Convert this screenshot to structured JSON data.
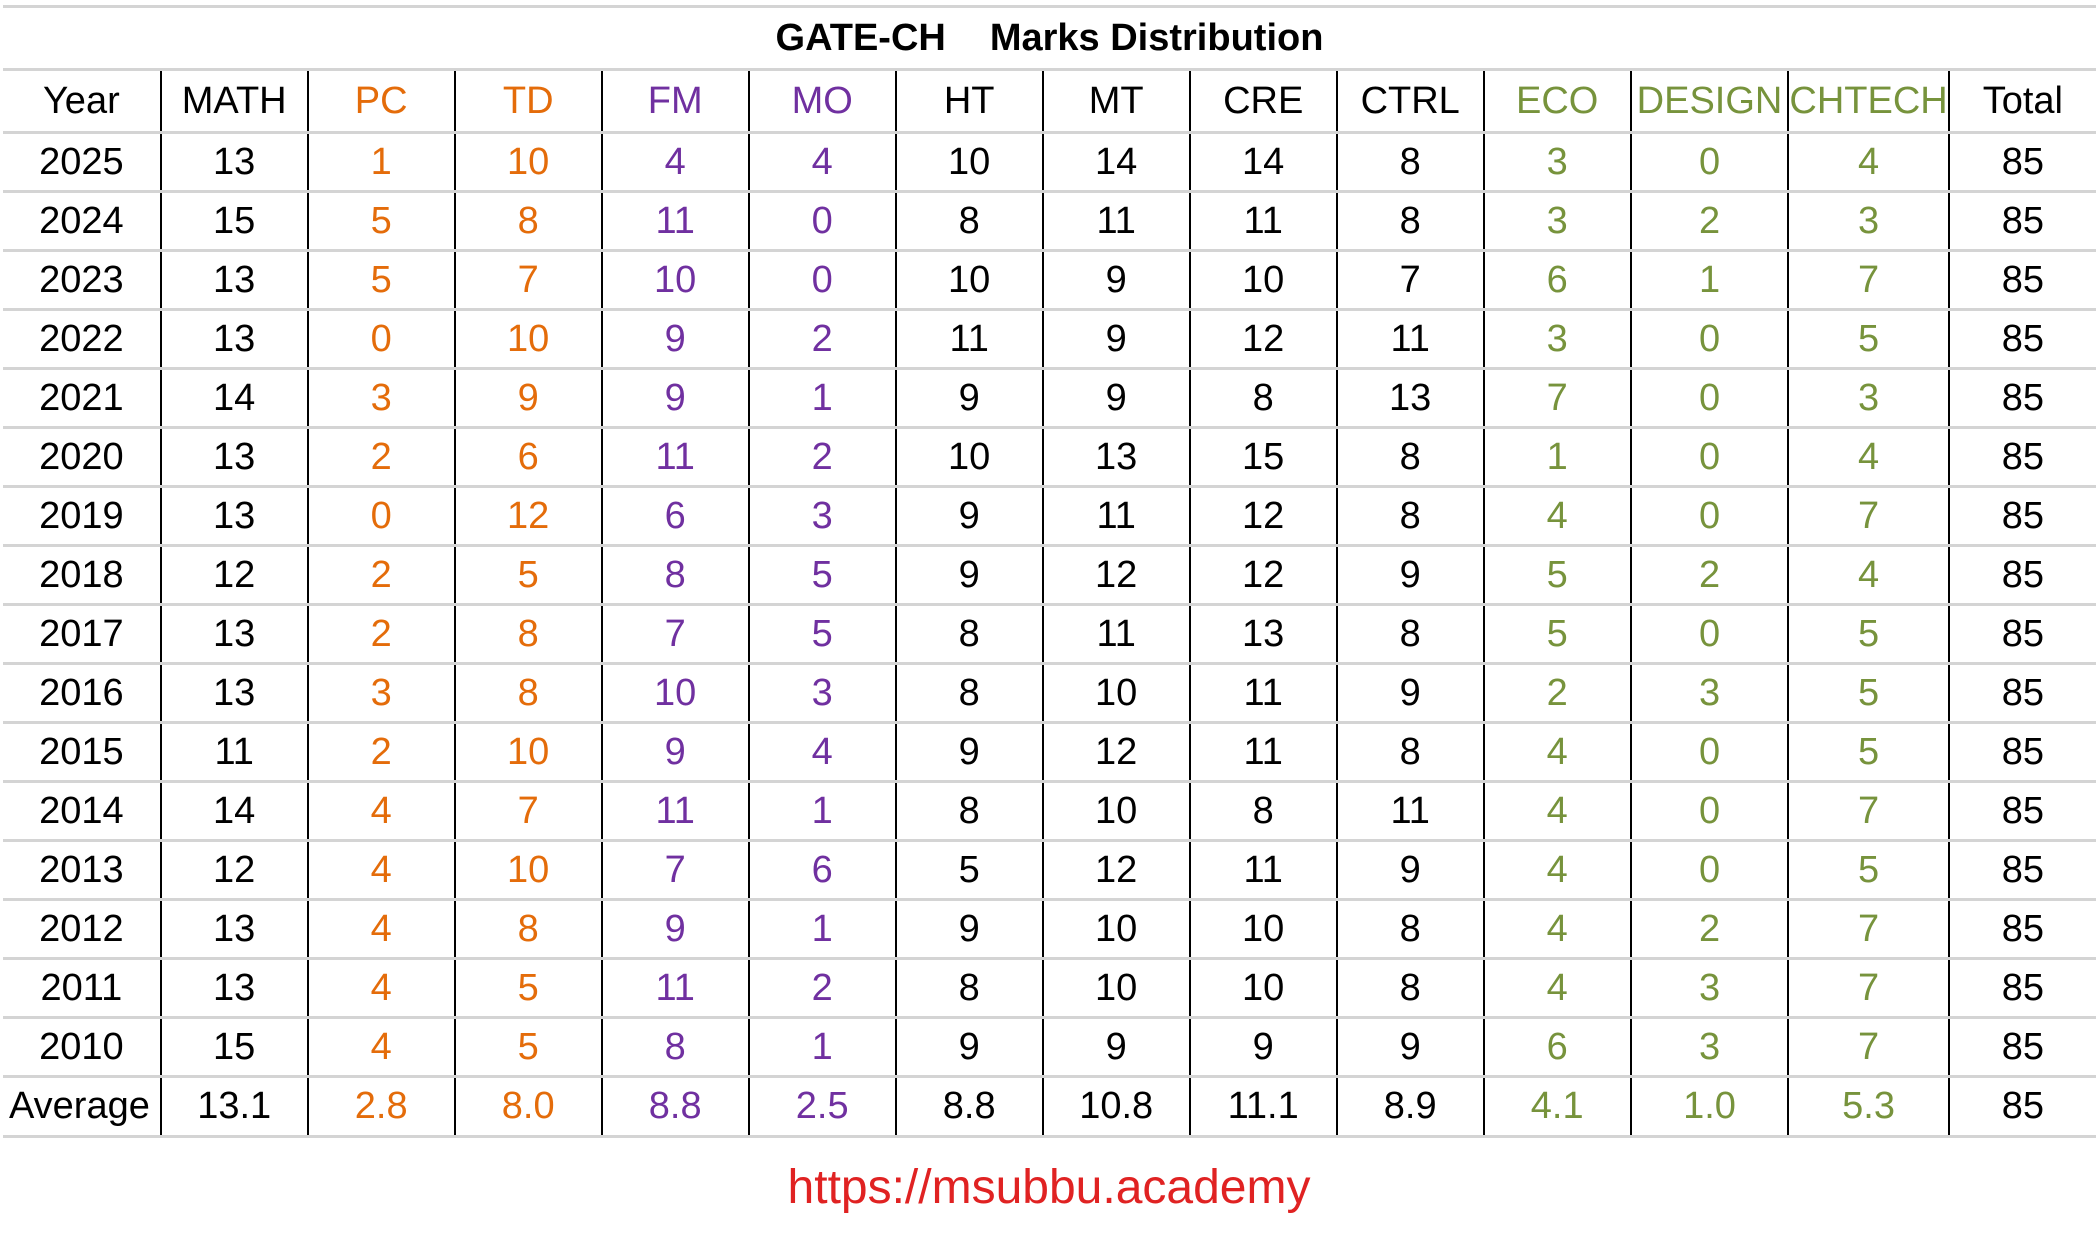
{
  "chart_data": {
    "type": "table",
    "title_part1": "GATE-CH",
    "title_part2": "Marks Distribution",
    "columns": [
      "Year",
      "MATH",
      "PC",
      "TD",
      "FM",
      "MO",
      "HT",
      "MT",
      "CRE",
      "CTRL",
      "ECO",
      "DESIGN",
      "CHTECH",
      "Total"
    ],
    "column_colors": [
      "#000000",
      "#000000",
      "#e46c0a",
      "#e46c0a",
      "#7030a0",
      "#7030a0",
      "#000000",
      "#000000",
      "#000000",
      "#000000",
      "#77933c",
      "#77933c",
      "#77933c",
      "#000000"
    ],
    "rows": [
      [
        "2025",
        "13",
        "1",
        "10",
        "4",
        "4",
        "10",
        "14",
        "14",
        "8",
        "3",
        "0",
        "4",
        "85"
      ],
      [
        "2024",
        "15",
        "5",
        "8",
        "11",
        "0",
        "8",
        "11",
        "11",
        "8",
        "3",
        "2",
        "3",
        "85"
      ],
      [
        "2023",
        "13",
        "5",
        "7",
        "10",
        "0",
        "10",
        "9",
        "10",
        "7",
        "6",
        "1",
        "7",
        "85"
      ],
      [
        "2022",
        "13",
        "0",
        "10",
        "9",
        "2",
        "11",
        "9",
        "12",
        "11",
        "3",
        "0",
        "5",
        "85"
      ],
      [
        "2021",
        "14",
        "3",
        "9",
        "9",
        "1",
        "9",
        "9",
        "8",
        "13",
        "7",
        "0",
        "3",
        "85"
      ],
      [
        "2020",
        "13",
        "2",
        "6",
        "11",
        "2",
        "10",
        "13",
        "15",
        "8",
        "1",
        "0",
        "4",
        "85"
      ],
      [
        "2019",
        "13",
        "0",
        "12",
        "6",
        "3",
        "9",
        "11",
        "12",
        "8",
        "4",
        "0",
        "7",
        "85"
      ],
      [
        "2018",
        "12",
        "2",
        "5",
        "8",
        "5",
        "9",
        "12",
        "12",
        "9",
        "5",
        "2",
        "4",
        "85"
      ],
      [
        "2017",
        "13",
        "2",
        "8",
        "7",
        "5",
        "8",
        "11",
        "13",
        "8",
        "5",
        "0",
        "5",
        "85"
      ],
      [
        "2016",
        "13",
        "3",
        "8",
        "10",
        "3",
        "8",
        "10",
        "11",
        "9",
        "2",
        "3",
        "5",
        "85"
      ],
      [
        "2015",
        "11",
        "2",
        "10",
        "9",
        "4",
        "9",
        "12",
        "11",
        "8",
        "4",
        "0",
        "5",
        "85"
      ],
      [
        "2014",
        "14",
        "4",
        "7",
        "11",
        "1",
        "8",
        "10",
        "8",
        "11",
        "4",
        "0",
        "7",
        "85"
      ],
      [
        "2013",
        "12",
        "4",
        "10",
        "7",
        "6",
        "5",
        "12",
        "11",
        "9",
        "4",
        "0",
        "5",
        "85"
      ],
      [
        "2012",
        "13",
        "4",
        "8",
        "9",
        "1",
        "9",
        "10",
        "10",
        "8",
        "4",
        "2",
        "7",
        "85"
      ],
      [
        "2011",
        "13",
        "4",
        "5",
        "11",
        "2",
        "8",
        "10",
        "10",
        "8",
        "4",
        "3",
        "7",
        "85"
      ],
      [
        "2010",
        "15",
        "4",
        "5",
        "8",
        "1",
        "9",
        "9",
        "9",
        "9",
        "6",
        "3",
        "7",
        "85"
      ]
    ],
    "average": [
      "Average",
      "13.1",
      "2.8",
      "8.0",
      "8.8",
      "2.5",
      "8.8",
      "10.8",
      "11.1",
      "8.9",
      "4.1",
      "1.0",
      "5.3",
      "85"
    ]
  },
  "footer": {
    "url": "https://msubbu.academy",
    "url_color": "#e02222"
  }
}
